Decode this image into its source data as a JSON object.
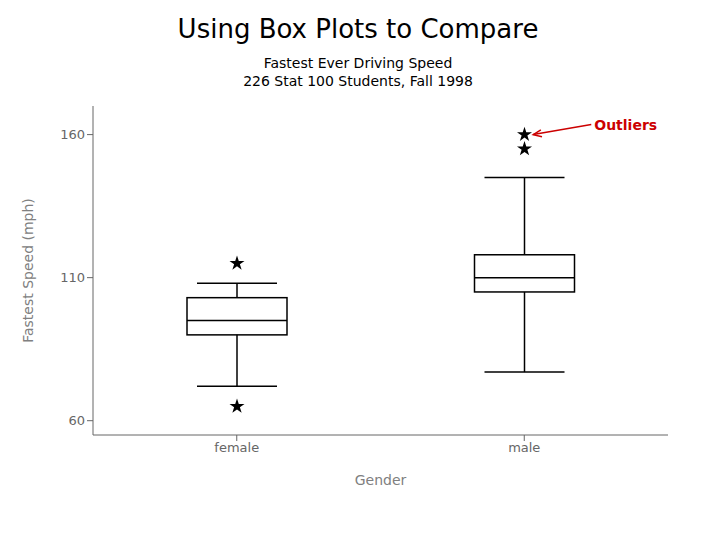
{
  "chart_data": {
    "type": "box",
    "title": "Using Box Plots to Compare",
    "subtitle": [
      "Fastest Ever Driving Speed",
      "226 Stat 100 Students, Fall 1998"
    ],
    "x_label": "Gender",
    "y_label": "Fastest Speed (mph)",
    "categories": [
      "female",
      "male"
    ],
    "values": [
      {
        "q1": 90,
        "median": 95,
        "q3": 103,
        "whisker_low": 72,
        "whisker_high": 108,
        "outliers": [
          65,
          115
        ]
      },
      {
        "q1": 105,
        "median": 110,
        "q3": 118,
        "whisker_low": 77,
        "whisker_high": 145,
        "outliers": [
          155,
          160
        ]
      }
    ],
    "color": "#000000",
    "marker": "star",
    "ylim": [
      55,
      170
    ],
    "yticks": [
      60,
      110,
      160
    ],
    "grid": false,
    "annotations": [
      {
        "text": "Outliers",
        "x": "male",
        "y": 160,
        "color": "#cc0000"
      }
    ]
  }
}
